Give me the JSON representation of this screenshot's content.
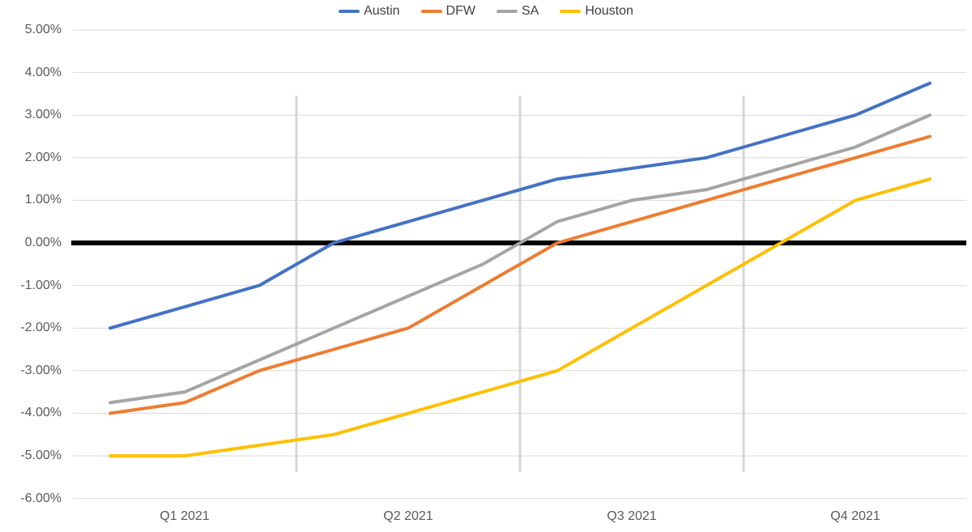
{
  "chart_data": {
    "type": "line",
    "title": "",
    "xlabel": "",
    "ylabel": "",
    "x_count": 12,
    "x_tick_labels": [
      "Q1 2021",
      "Q2 2021",
      "Q3 2021",
      "Q4 2021"
    ],
    "y_tick_labels": [
      "5.00%",
      "4.00%",
      "3.00%",
      "2.00%",
      "1.00%",
      "0.00%",
      "-1.00%",
      "-2.00%",
      "-3.00%",
      "-4.00%",
      "-5.00%",
      "-6.00%"
    ],
    "y_tick_values": [
      5,
      4,
      3,
      2,
      1,
      0,
      -1,
      -2,
      -3,
      -4,
      -5,
      -6
    ],
    "ylim": [
      -6,
      5
    ],
    "grid": "on",
    "legend_position": "top-center",
    "series": [
      {
        "name": "Austin",
        "color": "#4472C4",
        "values": [
          -2.0,
          -1.5,
          -1.0,
          0.0,
          0.5,
          1.0,
          1.5,
          1.75,
          2.0,
          2.5,
          3.0,
          3.75
        ]
      },
      {
        "name": "DFW",
        "color": "#ED7D31",
        "values": [
          -4.0,
          -3.75,
          -3.0,
          -2.5,
          -2.0,
          -1.0,
          0.0,
          0.5,
          1.0,
          1.5,
          2.0,
          2.5
        ]
      },
      {
        "name": "SA",
        "color": "#A5A5A5",
        "values": [
          -3.75,
          -3.5,
          -2.75,
          -2.0,
          -1.25,
          -0.5,
          0.5,
          1.0,
          1.25,
          1.75,
          2.25,
          3.0
        ]
      },
      {
        "name": "Houston",
        "color": "#FFC000",
        "values": [
          -5.0,
          -5.0,
          -4.75,
          -4.5,
          -4.0,
          -3.5,
          -3.0,
          -2.0,
          -1.0,
          0.0,
          1.0,
          1.5
        ]
      }
    ],
    "zero_line_color": "#000000",
    "gridline_color": "#D9D9D9",
    "separator_color": "#D6D6D6",
    "quarter_separator_after_month_index": [
      2,
      5,
      8
    ],
    "axis_text_color": "#595959",
    "legend_text_color": "#404040"
  }
}
